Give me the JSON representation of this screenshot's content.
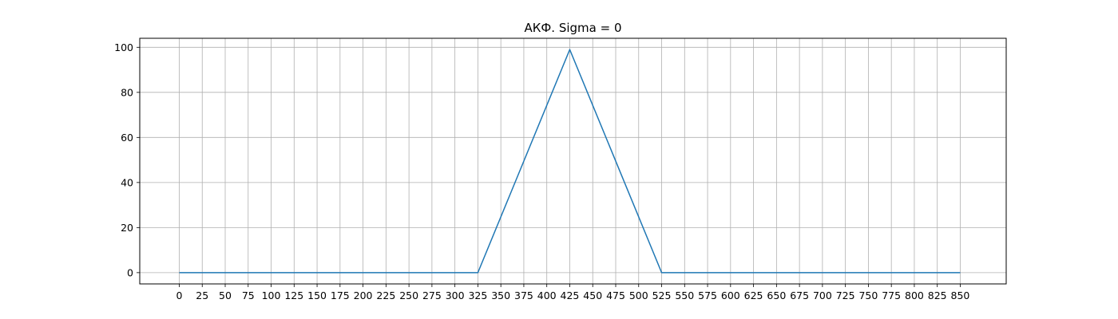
{
  "chart_data": {
    "type": "line",
    "title": "АКФ. Sigma = 0",
    "xlabel": "",
    "ylabel": "",
    "xlim": [
      -43,
      900
    ],
    "ylim": [
      -5,
      104
    ],
    "x_ticks": [
      0,
      25,
      50,
      75,
      100,
      125,
      150,
      175,
      200,
      225,
      250,
      275,
      300,
      325,
      350,
      375,
      400,
      425,
      450,
      475,
      500,
      525,
      550,
      575,
      600,
      625,
      650,
      675,
      700,
      725,
      750,
      775,
      800,
      825,
      850
    ],
    "y_ticks": [
      0,
      20,
      40,
      60,
      80,
      100
    ],
    "grid": true,
    "series": [
      {
        "x": [
          0,
          325,
          425,
          525,
          850
        ],
        "y": [
          0,
          0,
          99,
          0,
          0
        ],
        "color": "#1f77b4"
      }
    ]
  }
}
